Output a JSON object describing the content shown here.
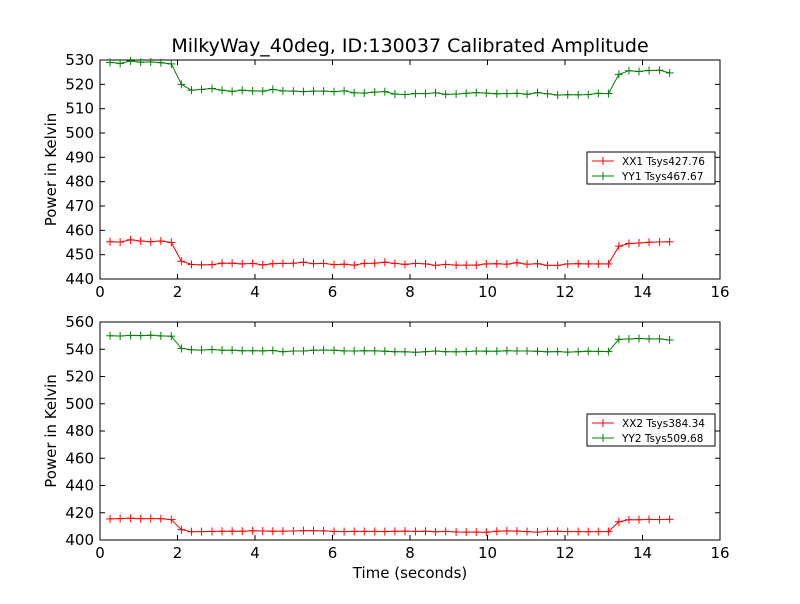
{
  "figure_title": "MilkyWay_40deg, ID:130037 Calibrated Amplitude",
  "colors": {
    "xx": "#ff0000",
    "yy": "#008000"
  },
  "chart_data": [
    {
      "type": "line",
      "title": "",
      "xlabel": "",
      "ylabel": "Power in Kelvin",
      "xlim": [
        0,
        16
      ],
      "ylim": [
        440,
        530
      ],
      "xticks": [
        0,
        2,
        4,
        6,
        8,
        10,
        12,
        14,
        16
      ],
      "yticks": [
        440,
        450,
        460,
        470,
        480,
        490,
        500,
        510,
        520,
        530
      ],
      "grid": false,
      "legend_position": "right",
      "x": [
        0.26,
        0.52,
        0.79,
        1.05,
        1.31,
        1.57,
        1.84,
        2.1,
        2.36,
        2.62,
        2.89,
        3.15,
        3.41,
        3.67,
        3.94,
        4.2,
        4.46,
        4.72,
        4.99,
        5.25,
        5.51,
        5.77,
        6.04,
        6.3,
        6.56,
        6.82,
        7.09,
        7.35,
        7.61,
        7.87,
        8.14,
        8.4,
        8.66,
        8.92,
        9.19,
        9.45,
        9.71,
        9.97,
        10.24,
        10.5,
        10.76,
        11.02,
        11.29,
        11.55,
        11.81,
        12.07,
        12.34,
        12.6,
        12.86,
        13.12,
        13.39,
        13.65,
        13.91,
        14.17,
        14.44,
        14.7
      ],
      "series": [
        {
          "name": "XX1 Tsys427.76",
          "color_key": "xx",
          "values": [
            455.3,
            455.2,
            456.1,
            455.6,
            455.3,
            455.6,
            455.0,
            447.3,
            446.0,
            445.8,
            445.9,
            446.5,
            446.5,
            446.2,
            446.4,
            445.8,
            446.3,
            446.4,
            446.5,
            446.9,
            446.3,
            446.4,
            445.9,
            446.1,
            445.7,
            446.4,
            446.5,
            446.9,
            446.4,
            446.0,
            446.4,
            446.2,
            445.6,
            446.0,
            445.7,
            445.7,
            445.7,
            446.2,
            446.3,
            446.1,
            446.7,
            446.1,
            446.3,
            445.6,
            445.6,
            446.2,
            446.3,
            446.2,
            446.2,
            446.2,
            453.5,
            454.6,
            454.8,
            455.1,
            455.2,
            455.3
          ]
        },
        {
          "name": "YY1 Tsys467.67",
          "color_key": "yy",
          "values": [
            529.0,
            528.6,
            529.6,
            529.1,
            529.2,
            528.9,
            528.4,
            520.0,
            517.6,
            517.9,
            518.3,
            517.6,
            517.1,
            517.6,
            517.3,
            517.2,
            517.9,
            517.3,
            517.2,
            517.0,
            517.2,
            517.2,
            517.0,
            517.3,
            516.5,
            516.4,
            516.8,
            517.0,
            516.0,
            515.8,
            516.2,
            516.2,
            516.5,
            515.9,
            516.0,
            516.3,
            516.6,
            516.4,
            516.1,
            516.2,
            516.3,
            515.9,
            516.6,
            516.1,
            515.6,
            515.7,
            515.7,
            515.8,
            516.3,
            516.2,
            524.1,
            525.6,
            525.3,
            525.7,
            525.8,
            524.7
          ]
        }
      ]
    },
    {
      "type": "line",
      "title": "",
      "xlabel": "Time (seconds)",
      "ylabel": "Power in Kelvin",
      "xlim": [
        0,
        16
      ],
      "ylim": [
        400,
        560
      ],
      "xticks": [
        0,
        2,
        4,
        6,
        8,
        10,
        12,
        14,
        16
      ],
      "yticks": [
        400,
        420,
        440,
        460,
        480,
        500,
        520,
        540,
        560
      ],
      "grid": false,
      "legend_position": "right",
      "x": [
        0.26,
        0.52,
        0.79,
        1.05,
        1.31,
        1.57,
        1.84,
        2.1,
        2.36,
        2.62,
        2.89,
        3.15,
        3.41,
        3.67,
        3.94,
        4.2,
        4.46,
        4.72,
        4.99,
        5.25,
        5.51,
        5.77,
        6.04,
        6.3,
        6.56,
        6.82,
        7.09,
        7.35,
        7.61,
        7.87,
        8.14,
        8.4,
        8.66,
        8.92,
        9.19,
        9.45,
        9.71,
        9.97,
        10.24,
        10.5,
        10.76,
        11.02,
        11.29,
        11.55,
        11.81,
        12.07,
        12.34,
        12.6,
        12.86,
        13.12,
        13.39,
        13.65,
        13.91,
        14.17,
        14.44,
        14.7
      ],
      "series": [
        {
          "name": "XX2 Tsys384.34",
          "color_key": "xx",
          "values": [
            415.5,
            415.7,
            416.0,
            415.6,
            415.7,
            415.6,
            415.0,
            407.6,
            406.1,
            406.2,
            406.3,
            406.4,
            406.5,
            406.4,
            406.8,
            406.6,
            406.4,
            406.5,
            406.6,
            406.9,
            406.8,
            406.7,
            406.3,
            406.2,
            406.3,
            406.3,
            406.3,
            406.2,
            406.4,
            406.5,
            406.3,
            406.4,
            406.0,
            406.3,
            405.9,
            405.8,
            405.8,
            405.7,
            406.4,
            406.7,
            406.5,
            406.2,
            405.8,
            406.3,
            406.4,
            406.2,
            406.2,
            406.1,
            406.2,
            406.2,
            413.4,
            414.9,
            414.9,
            415.1,
            415.0,
            415.2
          ]
        },
        {
          "name": "YY2 Tsys509.68",
          "color_key": "yy",
          "values": [
            549.9,
            549.7,
            550.2,
            550.0,
            550.3,
            549.8,
            549.6,
            540.6,
            539.6,
            539.4,
            539.8,
            539.3,
            539.3,
            538.9,
            538.9,
            538.8,
            539.1,
            538.2,
            538.7,
            538.7,
            539.3,
            539.4,
            539.3,
            538.8,
            538.7,
            538.9,
            538.8,
            538.6,
            538.2,
            538.1,
            537.8,
            538.2,
            538.7,
            538.2,
            538.1,
            538.3,
            538.7,
            538.6,
            538.6,
            538.9,
            538.7,
            538.7,
            538.5,
            538.1,
            538.3,
            537.9,
            538.2,
            538.6,
            538.4,
            538.3,
            547.3,
            547.5,
            547.9,
            547.6,
            547.6,
            546.8
          ]
        }
      ]
    }
  ]
}
